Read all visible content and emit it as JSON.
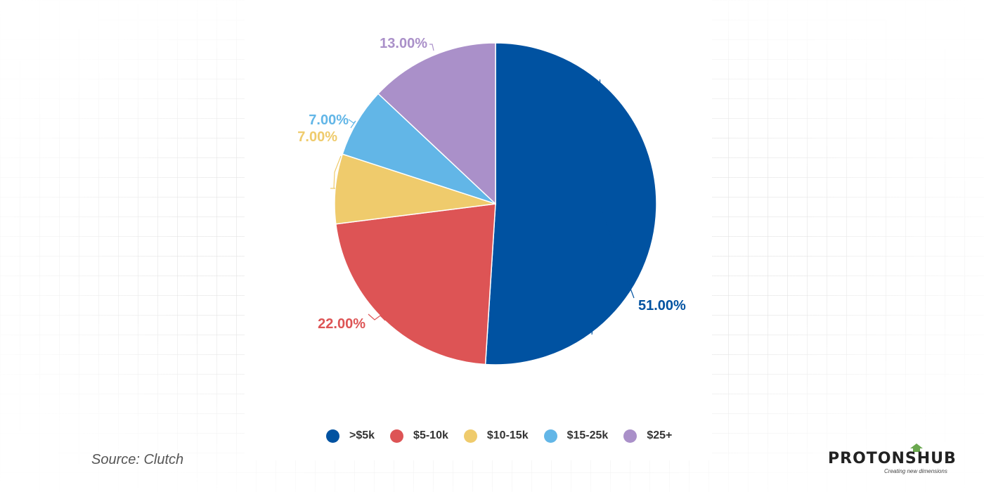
{
  "chart_data": {
    "type": "pie",
    "categories": [
      ">$5k",
      "$5-10k",
      "$10-15k",
      "$15-25k",
      "$25+"
    ],
    "values": [
      51,
      22,
      7,
      7,
      13
    ],
    "labels": [
      "51.00%",
      "22.00%",
      "7.00%",
      "7.00%",
      "13.00%"
    ],
    "colors": [
      "#0052a1",
      "#dd5455",
      "#efcb6c",
      "#62b6e7",
      "#aa90c9"
    ],
    "start_angle_deg": 0,
    "direction": "clockwise",
    "legend_position": "bottom"
  },
  "source": "Source: Clutch",
  "logo": {
    "brand": "PROTONSHUB",
    "tagline": "Creating new dimensions",
    "accent_color": "#6aa84f"
  }
}
